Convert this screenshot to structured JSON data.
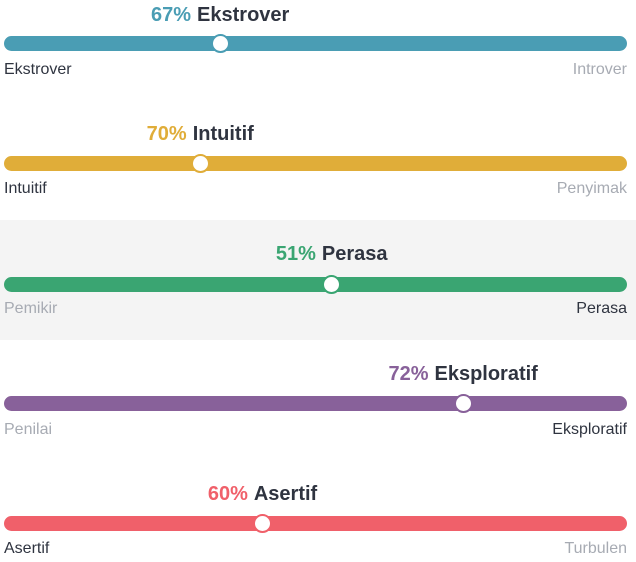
{
  "traits": [
    {
      "percent": "67%",
      "name": "Ekstrover",
      "level": 0.347,
      "color": "#4a9db4",
      "left_label": "Ekstrover",
      "right_label": "Introver",
      "active_side": "left",
      "highlighted": false
    },
    {
      "percent": "70%",
      "name": "Intuitif",
      "level": 0.315,
      "color": "#e0ad39",
      "left_label": "Intuitif",
      "right_label": "Penyimak",
      "active_side": "left",
      "highlighted": false
    },
    {
      "percent": "51%",
      "name": "Perasa",
      "level": 0.526,
      "color": "#3aa572",
      "left_label": "Pemikir",
      "right_label": "Perasa",
      "active_side": "right",
      "highlighted": true
    },
    {
      "percent": "72%",
      "name": "Eksploratif",
      "level": 0.737,
      "color": "#88619a",
      "left_label": "Penilai",
      "right_label": "Eksploratif",
      "active_side": "right",
      "highlighted": false
    },
    {
      "percent": "60%",
      "name": "Asertif",
      "level": 0.415,
      "color": "#f0606a",
      "left_label": "Asertif",
      "right_label": "Turbulen",
      "active_side": "left",
      "highlighted": false
    }
  ]
}
